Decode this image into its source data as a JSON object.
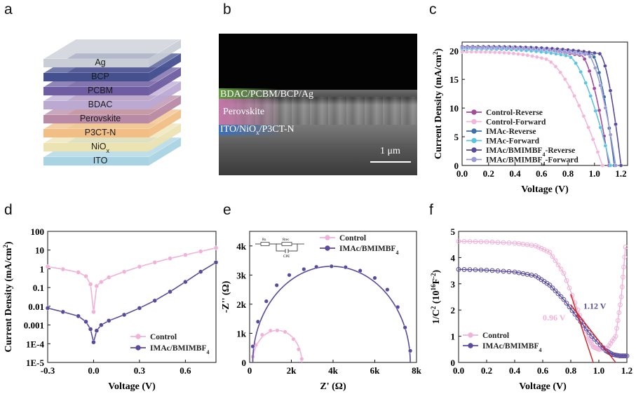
{
  "panels": {
    "a": "a",
    "b": "b",
    "c": "c",
    "d": "d",
    "e": "e",
    "f": "f"
  },
  "layer_stack": {
    "layers": [
      {
        "label": "Ag",
        "color": "#c9ced6"
      },
      {
        "label": "BCP",
        "color": "#45508f"
      },
      {
        "label": "PCBM",
        "color": "#6e5da0"
      },
      {
        "label": "BDAC",
        "color": "#bba9d2"
      },
      {
        "label": "Perovskite",
        "color": "#b88aa6"
      },
      {
        "label": "P3CT-N",
        "color": "#f1bf86"
      },
      {
        "label": "NiOx",
        "color": "#ece3b3",
        "label_main": "NiO",
        "label_sub": "x"
      },
      {
        "label": "ITO",
        "color": "#a9d3e2"
      }
    ]
  },
  "sem": {
    "top_label": "BDAC/PCBM/BCP/Ag",
    "middle_label": "Perovskite",
    "bottom_label_main": "ITO/NiO",
    "bottom_label_sub": "x",
    "bottom_label_rest": "/P3CT-N",
    "scale_bar": "1 μm",
    "colors": {
      "top_band": "#5f9a3c",
      "perovskite_band": "#c377a8",
      "bottom_band": "#3d6fb8"
    }
  },
  "chart_data": [
    {
      "id": "c",
      "type": "line",
      "xlabel": "Voltage (V)",
      "ylabel_main": "Current Density (mA/cm",
      "ylabel_sup": "2",
      "ylabel_end": ")",
      "xlim": [
        0,
        1.25
      ],
      "ylim": [
        0,
        21.5
      ],
      "xticks": [
        0.0,
        0.2,
        0.4,
        0.6,
        0.8,
        1.0,
        1.2
      ],
      "yticks": [
        0,
        5,
        10,
        15,
        20
      ],
      "legend_position": "middle-left",
      "series": [
        {
          "name": "Control-Reverse",
          "name_main": "Control-Reverse",
          "color": "#a34a9e",
          "jsc": 20.4,
          "voc": 1.11,
          "vk": 0.9
        },
        {
          "name": "Control-Forward",
          "name_main": "Control-Forward",
          "color": "#f2b6d8",
          "jsc": 19.8,
          "voc": 1.06,
          "vk": 0.62
        },
        {
          "name": "IMAc-Reverse",
          "name_main": "IMAc-Reverse",
          "color": "#3d6fa8",
          "jsc": 20.6,
          "voc": 1.15,
          "vk": 0.98
        },
        {
          "name": "IMAc-Forward",
          "name_main": "IMAc-Forward",
          "color": "#5cc3e0",
          "jsc": 20.3,
          "voc": 1.12,
          "vk": 0.8
        },
        {
          "name": "IMAc/BMIMBF4-Reverse",
          "name_main": "IMAc/BMIMBF",
          "name_sub": "4",
          "name_end": "-Reverse",
          "color": "#5b4a9c",
          "jsc": 20.7,
          "voc": 1.2,
          "vk": 1.04
        },
        {
          "name": "IMAc/BMIMBF4-Forward",
          "name_main": "IMAc/BMIMBF",
          "name_sub": "4",
          "name_end": "-Forward",
          "color": "#9a9ad6",
          "jsc": 20.5,
          "voc": 1.16,
          "vk": 0.95
        }
      ]
    },
    {
      "id": "d",
      "type": "line",
      "yscale": "log",
      "xlabel": "Voltage (V)",
      "ylabel_main": "Current Density (mA/cm",
      "ylabel_sup": "2",
      "ylabel_end": ")",
      "xlim": [
        -0.3,
        0.8
      ],
      "ylim": [
        1e-05,
        100
      ],
      "xticks": [
        -0.3,
        0.0,
        0.3,
        0.6
      ],
      "xtick_labels": [
        "-0.3",
        "0.0",
        "0.3",
        "0.6"
      ],
      "yticks": [
        100,
        10,
        1,
        0.1,
        0.01,
        0.001,
        0.0001,
        1e-05
      ],
      "ytick_labels": [
        "100",
        "10",
        "1",
        "0.1",
        "0.01",
        "0.001",
        "1E-4",
        "1E-5"
      ],
      "legend_position": "bottom-right",
      "series": [
        {
          "name": "Control",
          "name_main": "Control",
          "color": "#f0b2d8",
          "x": [
            -0.3,
            -0.2,
            -0.1,
            -0.05,
            -0.02,
            0.0,
            0.02,
            0.05,
            0.1,
            0.2,
            0.3,
            0.4,
            0.5,
            0.6,
            0.7,
            0.8
          ],
          "y": [
            1.3,
            0.95,
            0.65,
            0.4,
            0.15,
            0.005,
            0.12,
            0.2,
            0.35,
            0.7,
            1.3,
            2.2,
            3.6,
            5.5,
            8.5,
            13
          ]
        },
        {
          "name": "IMAc/BMIMBF4",
          "name_main": "IMAc/BMIMBF",
          "name_sub": "4",
          "color": "#5b4a9c",
          "x": [
            -0.3,
            -0.2,
            -0.1,
            -0.05,
            -0.02,
            0.0,
            0.02,
            0.05,
            0.1,
            0.2,
            0.3,
            0.4,
            0.5,
            0.6,
            0.7,
            0.8
          ],
          "y": [
            0.008,
            0.005,
            0.003,
            0.0015,
            0.0006,
            0.00012,
            0.0005,
            0.001,
            0.0017,
            0.0035,
            0.008,
            0.02,
            0.06,
            0.2,
            0.7,
            2.2
          ]
        }
      ]
    },
    {
      "id": "e",
      "type": "scatter",
      "xlabel": "Z' (Ω)",
      "ylabel": "-Z'' (Ω)",
      "xlim": [
        0,
        8000
      ],
      "ylim": [
        0,
        4500
      ],
      "xticks": [
        0,
        2000,
        4000,
        6000,
        8000
      ],
      "xtick_labels": [
        "0",
        "2k",
        "4k",
        "6k",
        "8k"
      ],
      "yticks": [
        0,
        1000,
        2000,
        3000,
        4000
      ],
      "ytick_labels": [
        "0",
        "1k",
        "2k",
        "3k",
        "4k"
      ],
      "legend_position": "top-right",
      "inset": {
        "rs": "Rs",
        "rrec": "Rrec",
        "cpe": "CPE"
      },
      "series": [
        {
          "name": "Control",
          "name_main": "Control",
          "color": "#f0b2d8",
          "r_start": 150,
          "r_end": 2500,
          "peak": 1100,
          "x": [
            150,
            300,
            600,
            1000,
            1325,
            1700,
            2100,
            2350,
            2500
          ],
          "y": [
            200,
            600,
            950,
            1090,
            1100,
            1050,
            800,
            450,
            120
          ]
        },
        {
          "name": "IMAc/BMIMBF4",
          "name_main": "IMAc/BMIMBF",
          "name_sub": "4",
          "color": "#5b4a9c",
          "r_start": 150,
          "r_end": 7700,
          "peak": 3300,
          "x": [
            150,
            400,
            800,
            1300,
            1900,
            2600,
            3200,
            3925,
            4600,
            5300,
            6000,
            6600,
            7100,
            7450,
            7700
          ],
          "y": [
            550,
            1400,
            2100,
            2650,
            3000,
            3200,
            3280,
            3300,
            3270,
            3150,
            2900,
            2500,
            1900,
            1200,
            400
          ]
        }
      ]
    },
    {
      "id": "f",
      "type": "line",
      "xlabel": "Voltage (V)",
      "ylabel_main": "1/C",
      "ylabel_sup": "2",
      "ylabel_mid": " (10",
      "ylabel_sup2": "16",
      "ylabel_rest": "F",
      "ylabel_sup3": "-2",
      "ylabel_end": ")",
      "xlim": [
        0,
        1.2
      ],
      "ylim": [
        0,
        5
      ],
      "xticks": [
        0.0,
        0.2,
        0.4,
        0.6,
        0.8,
        1.0,
        1.2
      ],
      "yticks": [
        0,
        1,
        2,
        3,
        4,
        5
      ],
      "legend_position": "bottom-left",
      "annotations": [
        {
          "text": "0.96 V",
          "color": "#f0b2d8"
        },
        {
          "text": "1.12 V",
          "color": "#5b4a9c"
        }
      ],
      "fit_line_color": "#d62020",
      "series": [
        {
          "name": "Control",
          "name_main": "Control",
          "color": "#f0b2d8",
          "x": [
            0.0,
            0.2,
            0.4,
            0.55,
            0.65,
            0.75,
            0.85,
            0.92,
            0.96,
            1.0,
            1.06,
            1.12,
            1.16,
            1.19
          ],
          "y": [
            4.62,
            4.6,
            4.55,
            4.45,
            4.2,
            3.4,
            2.0,
            1.0,
            0.6,
            0.5,
            0.55,
            1.0,
            2.5,
            4.4
          ]
        },
        {
          "name": "IMAc/BMIMBF4",
          "name_main": "IMAc/BMIMBF",
          "name_sub": "4",
          "color": "#5b4a9c",
          "x": [
            0.0,
            0.2,
            0.4,
            0.55,
            0.65,
            0.75,
            0.85,
            0.95,
            1.05,
            1.1,
            1.15,
            1.2
          ],
          "y": [
            3.55,
            3.52,
            3.45,
            3.3,
            2.95,
            2.4,
            1.7,
            1.0,
            0.45,
            0.3,
            0.25,
            0.25
          ]
        }
      ],
      "fits": [
        {
          "x1": 0.8,
          "y1": 2.6,
          "x2": 0.96,
          "y2": 0
        },
        {
          "x1": 0.8,
          "y1": 2.2,
          "x2": 1.12,
          "y2": 0
        }
      ]
    }
  ]
}
